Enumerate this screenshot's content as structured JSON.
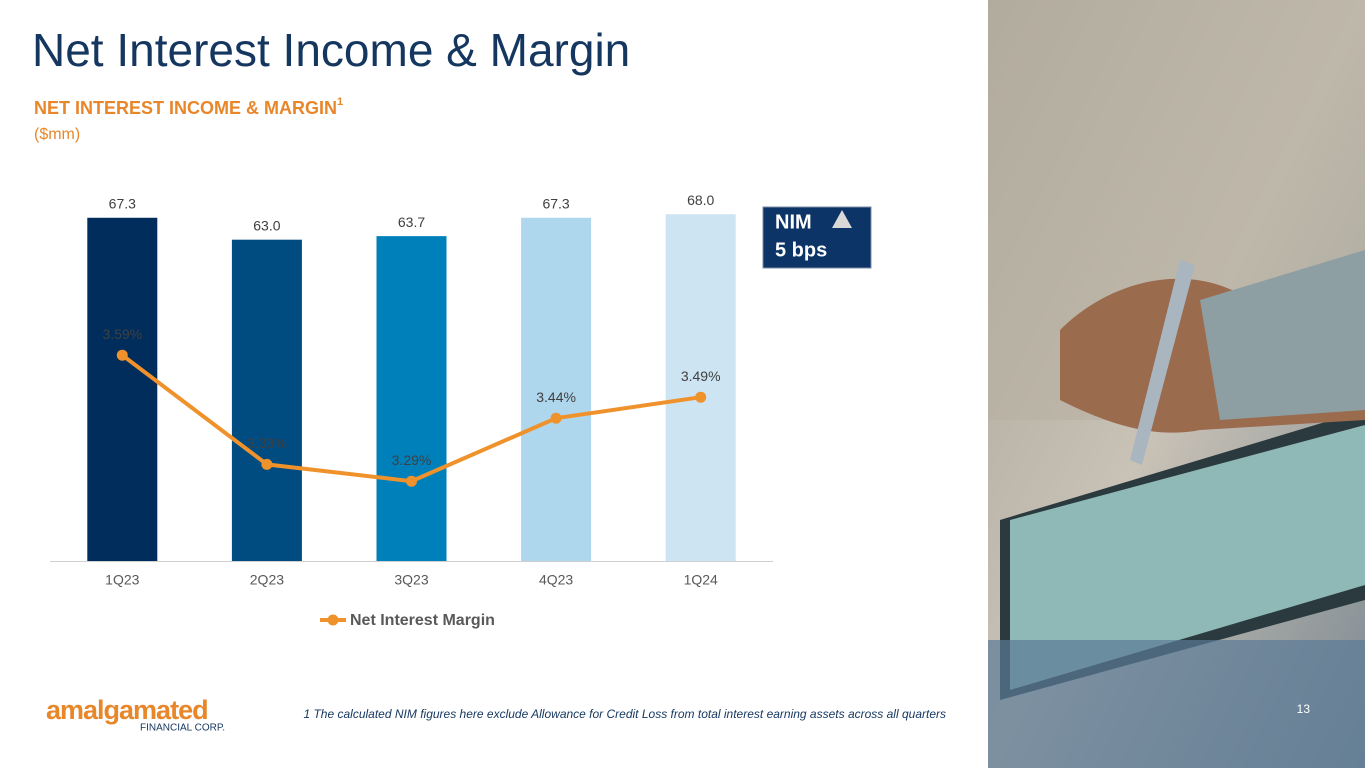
{
  "title": "Net Interest Income & Margin",
  "chart_data": {
    "type": "bar",
    "title": "NET INTEREST INCOME & MARGIN",
    "title_note": "1",
    "subtitle": "($mm)",
    "categories": [
      "1Q23",
      "2Q23",
      "3Q23",
      "4Q23",
      "1Q24"
    ],
    "ylim": [
      0,
      70
    ],
    "y2lim": [
      3.1,
      3.95
    ],
    "series": [
      {
        "type": "bar",
        "colors": [
          "#002d5c",
          "#004b80",
          "#0080bb",
          "#aed6ed",
          "#cde4f3"
        ],
        "values": [
          67.3,
          63.0,
          63.7,
          67.3,
          68.0
        ],
        "value_labels": [
          "67.3",
          "63.0",
          "63.7",
          "67.3",
          "68.0"
        ]
      },
      {
        "type": "line",
        "name": "Net Interest Margin",
        "color": "#f0922b",
        "axis": "y2",
        "values": [
          3.59,
          3.33,
          3.29,
          3.44,
          3.49
        ],
        "value_labels": [
          "3.59%",
          "3.33%",
          "3.29%",
          "3.44%",
          "3.49%"
        ]
      }
    ]
  },
  "badge": {
    "label": "NIM",
    "value": "5 bps"
  },
  "logo": {
    "name": "amalgamated",
    "tagline": "FINANCIAL CORP."
  },
  "footnote": "1 The calculated NIM figures here exclude Allowance for Credit Loss from total interest earning assets across all quarters",
  "page_number": "13"
}
